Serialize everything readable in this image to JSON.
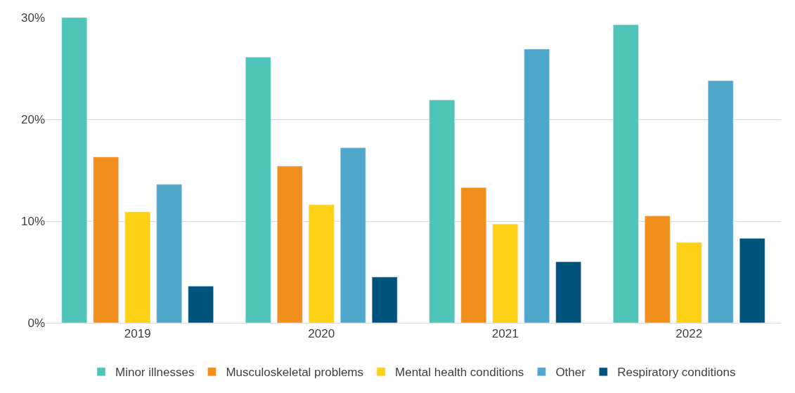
{
  "chart_data": {
    "type": "bar",
    "categories": [
      "2019",
      "2020",
      "2021",
      "2022"
    ],
    "series": [
      {
        "name": "Minor illnesses",
        "color": "#4fc4b8",
        "values": [
          30.0,
          26.1,
          21.9,
          29.3
        ]
      },
      {
        "name": "Musculoskeletal problems",
        "color": "#f28e1c",
        "values": [
          16.3,
          15.4,
          13.3,
          10.5
        ]
      },
      {
        "name": "Mental health conditions",
        "color": "#fdd116",
        "values": [
          10.9,
          11.6,
          9.7,
          7.9
        ]
      },
      {
        "name": "Other",
        "color": "#4fa8cb",
        "values": [
          13.6,
          17.2,
          26.9,
          23.8
        ]
      },
      {
        "name": "Respiratory conditions",
        "color": "#00537a",
        "values": [
          3.6,
          4.5,
          6.0,
          8.3
        ]
      }
    ],
    "ylim": [
      0,
      30
    ],
    "yticks": [
      {
        "value": 0,
        "label": "0%"
      },
      {
        "value": 10,
        "label": "10%"
      },
      {
        "value": 20,
        "label": "20%"
      },
      {
        "value": 30,
        "label": "30%"
      }
    ],
    "grid": "y",
    "legend": "bottom"
  }
}
